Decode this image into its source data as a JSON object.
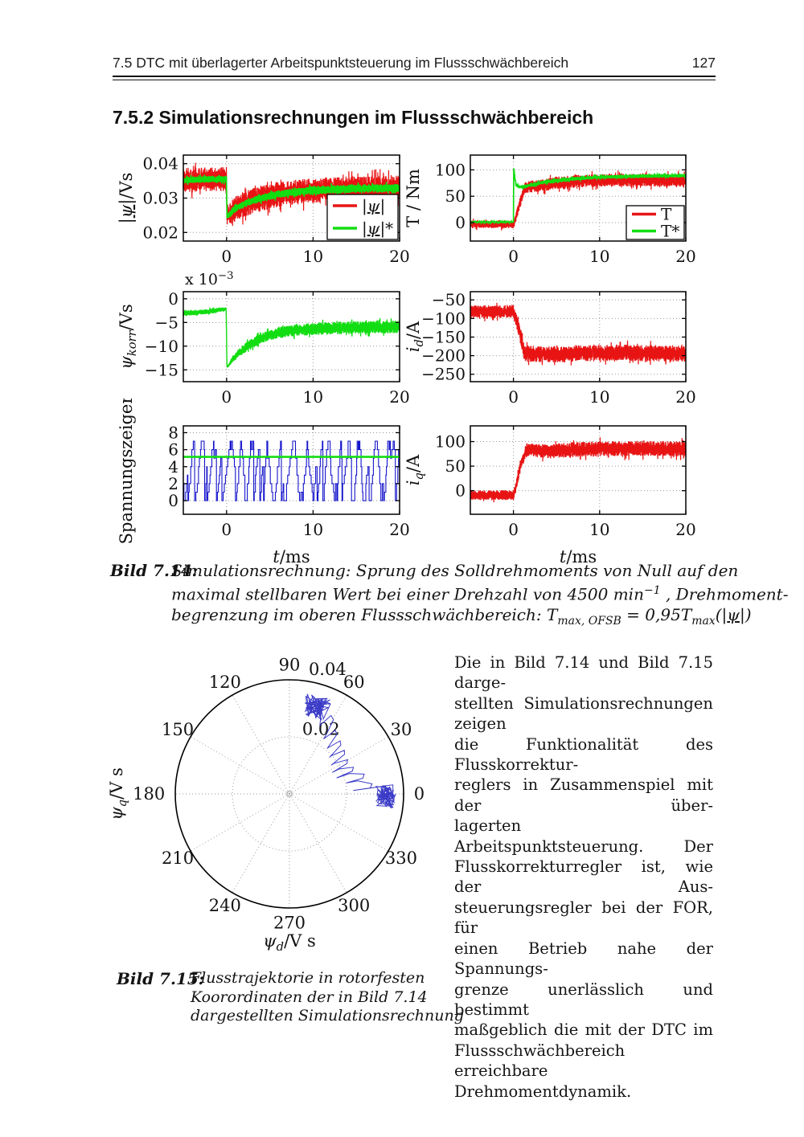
{
  "header": {
    "title": "7.5 DTC mit überlagerter Arbeitspunktsteuerung im Flussschwächbereich",
    "page_number": "127"
  },
  "section_heading": "7.5.2 Simulationsrechnungen im Flussschwächbereich",
  "colors": {
    "red": "#e81414",
    "green": "#12dd12",
    "blue": "#1414cc",
    "traj": "#3b3bc8",
    "grid": "#999999",
    "axis": "#000000"
  },
  "figure_714": {
    "caption_label": "Bild 7.14:",
    "caption_lines": [
      [
        {
          "t": "Simulationsrechnung: Sprung des Solldrehmoments von Null auf den"
        }
      ],
      [
        {
          "t": "maximal stellbaren Wert bei einer Drehzahl von 4500 min"
        },
        {
          "t": "−1",
          "sup": true
        },
        {
          "t": " , Drehmoment-"
        }
      ],
      [
        {
          "t": "begrenzung im oberen Flussschwächbereich: "
        },
        {
          "t": "T"
        },
        {
          "t": "max, OFSB",
          "sub": true
        },
        {
          "t": "  =  0,95"
        },
        {
          "t": "T"
        },
        {
          "t": "max",
          "sub": true
        },
        {
          "t": "(|"
        },
        {
          "t": "ψ",
          "u": true
        },
        {
          "t": "|)"
        }
      ]
    ],
    "plots": [
      {
        "id": "flux",
        "col": 0,
        "row": 0,
        "ylabel": [
          {
            "t": "|"
          },
          {
            "t": "ψ",
            "u": true,
            "i": true
          },
          {
            "t": "|/Vs"
          }
        ],
        "ylim": [
          0.0175,
          0.0425
        ],
        "yticks": [
          {
            "v": 0.02,
            "l": "0.02"
          },
          {
            "v": 0.03,
            "l": "0.03"
          },
          {
            "v": 0.04,
            "l": "0.04"
          }
        ],
        "xlim": [
          -5,
          20
        ],
        "xticks": [
          {
            "v": 0,
            "l": "0"
          },
          {
            "v": 10,
            "l": "10"
          },
          {
            "v": 20,
            "l": "20"
          }
        ],
        "legend": {
          "w": 88,
          "h": 56,
          "entries": [
            {
              "color": "red",
              "parts": [
                {
                  "t": "|"
                },
                {
                  "t": "ψ",
                  "u": true,
                  "i": true
                },
                {
                  "t": "|"
                }
              ]
            },
            {
              "color": "green",
              "parts": [
                {
                  "t": "|"
                },
                {
                  "t": "ψ",
                  "u": true,
                  "i": true
                },
                {
                  "t": "|*"
                }
              ]
            }
          ]
        },
        "series": [
          {
            "type": "noisy",
            "color": "red",
            "seed": 11,
            "width": 1.2,
            "keys": [
              [
                -5,
                0.0352,
                0.0032
              ],
              [
                -0.02,
                0.0356,
                0.0032
              ],
              [
                0.05,
                0.0245,
                0.0028
              ],
              [
                0.3,
                0.0253,
                0.003
              ],
              [
                1,
                0.0268,
                0.0033
              ],
              [
                2,
                0.0282,
                0.0034
              ],
              [
                3.5,
                0.0296,
                0.0034
              ],
              [
                5,
                0.0306,
                0.0034
              ],
              [
                7,
                0.0315,
                0.0033
              ],
              [
                10,
                0.0322,
                0.0033
              ],
              [
                14,
                0.0327,
                0.0033
              ],
              [
                20,
                0.0329,
                0.0033
              ]
            ]
          },
          {
            "type": "noisy",
            "color": "green",
            "seed": 12,
            "width": 1.7,
            "keys": [
              [
                -5,
                0.0352,
                0.0009
              ],
              [
                -0.02,
                0.0356,
                0.0009
              ],
              [
                0.05,
                0.0245,
                0.0008
              ],
              [
                0.3,
                0.0253,
                0.0008
              ],
              [
                1,
                0.0268,
                0.0009
              ],
              [
                2,
                0.0282,
                0.0009
              ],
              [
                3.5,
                0.0296,
                0.001
              ],
              [
                5,
                0.0306,
                0.001
              ],
              [
                7,
                0.0315,
                0.001
              ],
              [
                10,
                0.0322,
                0.0011
              ],
              [
                14,
                0.0327,
                0.0011
              ],
              [
                20,
                0.0329,
                0.0011
              ]
            ]
          }
        ]
      },
      {
        "id": "torque",
        "col": 1,
        "row": 0,
        "ylabel": [
          {
            "t": "T / Nm"
          }
        ],
        "ylim": [
          -35,
          128
        ],
        "yticks": [
          {
            "v": 0,
            "l": "0"
          },
          {
            "v": 50,
            "l": "50"
          },
          {
            "v": 100,
            "l": "100"
          }
        ],
        "xlim": [
          -5,
          20
        ],
        "xticks": [
          {
            "v": 0,
            "l": "0"
          },
          {
            "v": 10,
            "l": "10"
          },
          {
            "v": 20,
            "l": "20"
          }
        ],
        "legend": {
          "w": 72,
          "h": 42,
          "entries": [
            {
              "color": "red",
              "parts": [
                {
                  "t": "T"
                }
              ]
            },
            {
              "color": "green",
              "parts": [
                {
                  "t": "T*"
                }
              ]
            }
          ]
        },
        "series": [
          {
            "type": "noisy",
            "color": "red",
            "seed": 21,
            "width": 1.2,
            "keys": [
              [
                -5,
                -3,
                7
              ],
              [
                0,
                -3,
                7
              ],
              [
                0.15,
                2,
                7
              ],
              [
                0.7,
                35,
                9
              ],
              [
                1.3,
                66,
                10
              ],
              [
                2.5,
                69,
                11
              ],
              [
                5,
                75,
                11
              ],
              [
                8,
                79,
                11
              ],
              [
                12,
                81,
                11
              ],
              [
                20,
                80,
                11
              ]
            ]
          },
          {
            "type": "noisy",
            "color": "green",
            "seed": 22,
            "width": 1.7,
            "keys": [
              [
                -5,
                1,
                1.5
              ],
              [
                0,
                1,
                1.5
              ],
              [
                0.04,
                103,
                0.2
              ],
              [
                0.12,
                92,
                1
              ],
              [
                0.3,
                70,
                2
              ],
              [
                0.8,
                67,
                2.5
              ],
              [
                2,
                71,
                3
              ],
              [
                4,
                78,
                3
              ],
              [
                7,
                83,
                3
              ],
              [
                10,
                86,
                3
              ],
              [
                14,
                88,
                3
              ],
              [
                20,
                89,
                3
              ]
            ]
          }
        ]
      },
      {
        "id": "psikorr",
        "col": 0,
        "row": 1,
        "ylabel": [
          {
            "t": "ψ",
            "i": true
          },
          {
            "t": "korr",
            "sub": true,
            "i": true
          },
          {
            "t": "/Vs"
          }
        ],
        "multiplier": [
          {
            "t": "x 10"
          },
          {
            "t": "−3",
            "sup": true
          }
        ],
        "ylim": [
          -17.5,
          1.5
        ],
        "yticks": [
          {
            "v": 0,
            "l": "0"
          },
          {
            "v": -5,
            "l": "−5"
          },
          {
            "v": -10,
            "l": "−10"
          },
          {
            "v": -15,
            "l": "−15"
          }
        ],
        "xlim": [
          -5,
          20
        ],
        "xticks": [
          {
            "v": 0,
            "l": "0"
          },
          {
            "v": 10,
            "l": "10"
          },
          {
            "v": 20,
            "l": "20"
          }
        ],
        "series": [
          {
            "type": "noisy",
            "color": "green",
            "seed": 31,
            "width": 1.4,
            "keys": [
              [
                -5,
                -3.1,
                0.5
              ],
              [
                -2,
                -2.7,
                0.5
              ],
              [
                -0.05,
                -2.1,
                0.35
              ],
              [
                0.05,
                -14.5,
                0.15
              ],
              [
                0.6,
                -13,
                0.5
              ],
              [
                1.2,
                -11.8,
                0.8
              ],
              [
                2,
                -10.5,
                0.9
              ],
              [
                3,
                -9.3,
                1
              ],
              [
                4.5,
                -8,
                1
              ],
              [
                6,
                -7.2,
                1.1
              ],
              [
                8,
                -6.6,
                1.1
              ],
              [
                11,
                -6.3,
                1.2
              ],
              [
                15,
                -6.1,
                1.2
              ],
              [
                20,
                -5.9,
                1.2
              ]
            ]
          }
        ]
      },
      {
        "id": "id",
        "col": 1,
        "row": 1,
        "ylabel": [
          {
            "t": "i",
            "i": true
          },
          {
            "t": "d",
            "sub": true,
            "i": true
          },
          {
            "t": "/A"
          }
        ],
        "ylim": [
          -270,
          -28
        ],
        "yticks": [
          {
            "v": -50,
            "l": "−50"
          },
          {
            "v": -100,
            "l": "−100"
          },
          {
            "v": -150,
            "l": "−150"
          },
          {
            "v": -200,
            "l": "−200"
          },
          {
            "v": -250,
            "l": "−250"
          }
        ],
        "xlim": [
          -5,
          20
        ],
        "xticks": [
          {
            "v": 0,
            "l": "0"
          },
          {
            "v": 10,
            "l": "10"
          },
          {
            "v": 20,
            "l": "20"
          }
        ],
        "series": [
          {
            "type": "noisy",
            "color": "red",
            "seed": 41,
            "width": 1.2,
            "keys": [
              [
                -5,
                -82,
                16
              ],
              [
                0,
                -82,
                16
              ],
              [
                0.4,
                -108,
                18
              ],
              [
                0.9,
                -155,
                20
              ],
              [
                1.3,
                -195,
                20
              ],
              [
                5,
                -196,
                20
              ],
              [
                12,
                -192,
                20
              ],
              [
                20,
                -195,
                20
              ]
            ]
          }
        ]
      },
      {
        "id": "sz",
        "col": 0,
        "row": 2,
        "ylabel": [
          {
            "t": "Spannungszeiger"
          }
        ],
        "ylim": [
          -1.6,
          8.8
        ],
        "yticks": [
          {
            "v": 0,
            "l": "0"
          },
          {
            "v": 2,
            "l": "2"
          },
          {
            "v": 4,
            "l": "4"
          },
          {
            "v": 6,
            "l": "6"
          },
          {
            "v": 8,
            "l": "8"
          }
        ],
        "xlim": [
          -5,
          20
        ],
        "xticks": [
          {
            "v": 0,
            "l": "0"
          },
          {
            "v": 10,
            "l": "10"
          },
          {
            "v": 20,
            "l": "20"
          }
        ],
        "xlabel": [
          {
            "t": "t",
            "i": true
          },
          {
            "t": "/ms"
          }
        ],
        "series": [
          {
            "type": "steps",
            "color": "blue",
            "seed": 51,
            "width": 1.1,
            "min": 0,
            "max": 7
          },
          {
            "type": "const",
            "color": "green",
            "value": 5.15,
            "width": 2.6
          }
        ]
      },
      {
        "id": "iq",
        "col": 1,
        "row": 2,
        "ylabel": [
          {
            "t": "i",
            "i": true
          },
          {
            "t": "q",
            "sub": true,
            "i": true
          },
          {
            "t": "/A"
          }
        ],
        "ylim": [
          -48,
          132
        ],
        "yticks": [
          {
            "v": 0,
            "l": "0"
          },
          {
            "v": 50,
            "l": "50"
          },
          {
            "v": 100,
            "l": "100"
          }
        ],
        "xlim": [
          -5,
          20
        ],
        "xticks": [
          {
            "v": 0,
            "l": "0"
          },
          {
            "v": 10,
            "l": "10"
          },
          {
            "v": 20,
            "l": "20"
          }
        ],
        "xlabel": [
          {
            "t": "t",
            "i": true
          },
          {
            "t": "/ms"
          }
        ],
        "series": [
          {
            "type": "noisy",
            "color": "red",
            "seed": 61,
            "width": 1.2,
            "keys": [
              [
                -5,
                -9,
                9
              ],
              [
                0,
                -9,
                9
              ],
              [
                0.25,
                5,
                10
              ],
              [
                0.8,
                50,
                12
              ],
              [
                1.4,
                80,
                12
              ],
              [
                2,
                83,
                12
              ],
              [
                4,
                80,
                13
              ],
              [
                6,
                83,
                14
              ],
              [
                10,
                85,
                14
              ],
              [
                15,
                86,
                14
              ],
              [
                20,
                85,
                14
              ]
            ]
          }
        ]
      }
    ]
  },
  "figure_715": {
    "caption_label": "Bild 7.15:",
    "caption_lines": [
      "Flusstrajektorie in rotorfesten",
      "Koorordinaten der in Bild 7.14",
      "dargestellten Simulationsrechnung"
    ],
    "polar": {
      "rmax": 0.04,
      "angle_labels": [
        {
          "a": 0,
          "l": "0"
        },
        {
          "a": 30,
          "l": "30"
        },
        {
          "a": 60,
          "l": "60"
        },
        {
          "a": 90,
          "l": "90"
        },
        {
          "a": 120,
          "l": "120"
        },
        {
          "a": 150,
          "l": "150"
        },
        {
          "a": 180,
          "l": "180"
        },
        {
          "a": 210,
          "l": "210"
        },
        {
          "a": 240,
          "l": "240"
        },
        {
          "a": 270,
          "l": "270"
        },
        {
          "a": 300,
          "l": "300"
        },
        {
          "a": 330,
          "l": "330"
        }
      ],
      "radius_labels": [
        {
          "l": "0.02",
          "a": 64,
          "rf": 0.63
        },
        {
          "l": "0.04",
          "a": 73,
          "rf": 1.14
        }
      ],
      "ylabel": [
        {
          "t": "ψ",
          "i": true
        },
        {
          "t": "q",
          "sub": true,
          "i": true
        },
        {
          "t": "/V s"
        }
      ],
      "xlabel": [
        {
          "t": "ψ",
          "i": true
        },
        {
          "t": "d",
          "sub": true,
          "i": true
        },
        {
          "t": "/V s"
        }
      ],
      "blob_start": {
        "a": 73,
        "rf": 0.8
      },
      "blob_end": {
        "a": -1.5,
        "rf": 0.85
      }
    }
  },
  "paragraph_lines": [
    "Die in Bild 7.14 und Bild 7.15 darge-",
    "stellten Simulationsrechnungen zeigen",
    "die Funktionalität des Flusskorrektur-",
    "reglers in Zusammenspiel mit der über-",
    "lagerten Arbeitspunktsteuerung. Der",
    "Flusskorrekturregler ist, wie der Aus-",
    "steuerungsregler bei der FOR, für",
    "einen Betrieb nahe der Spannungs-",
    "grenze unerlässlich und bestimmt",
    "maßgeblich die mit der DTC im",
    "Flussschwächbereich erreichbare",
    "Drehmomentdynamik."
  ]
}
